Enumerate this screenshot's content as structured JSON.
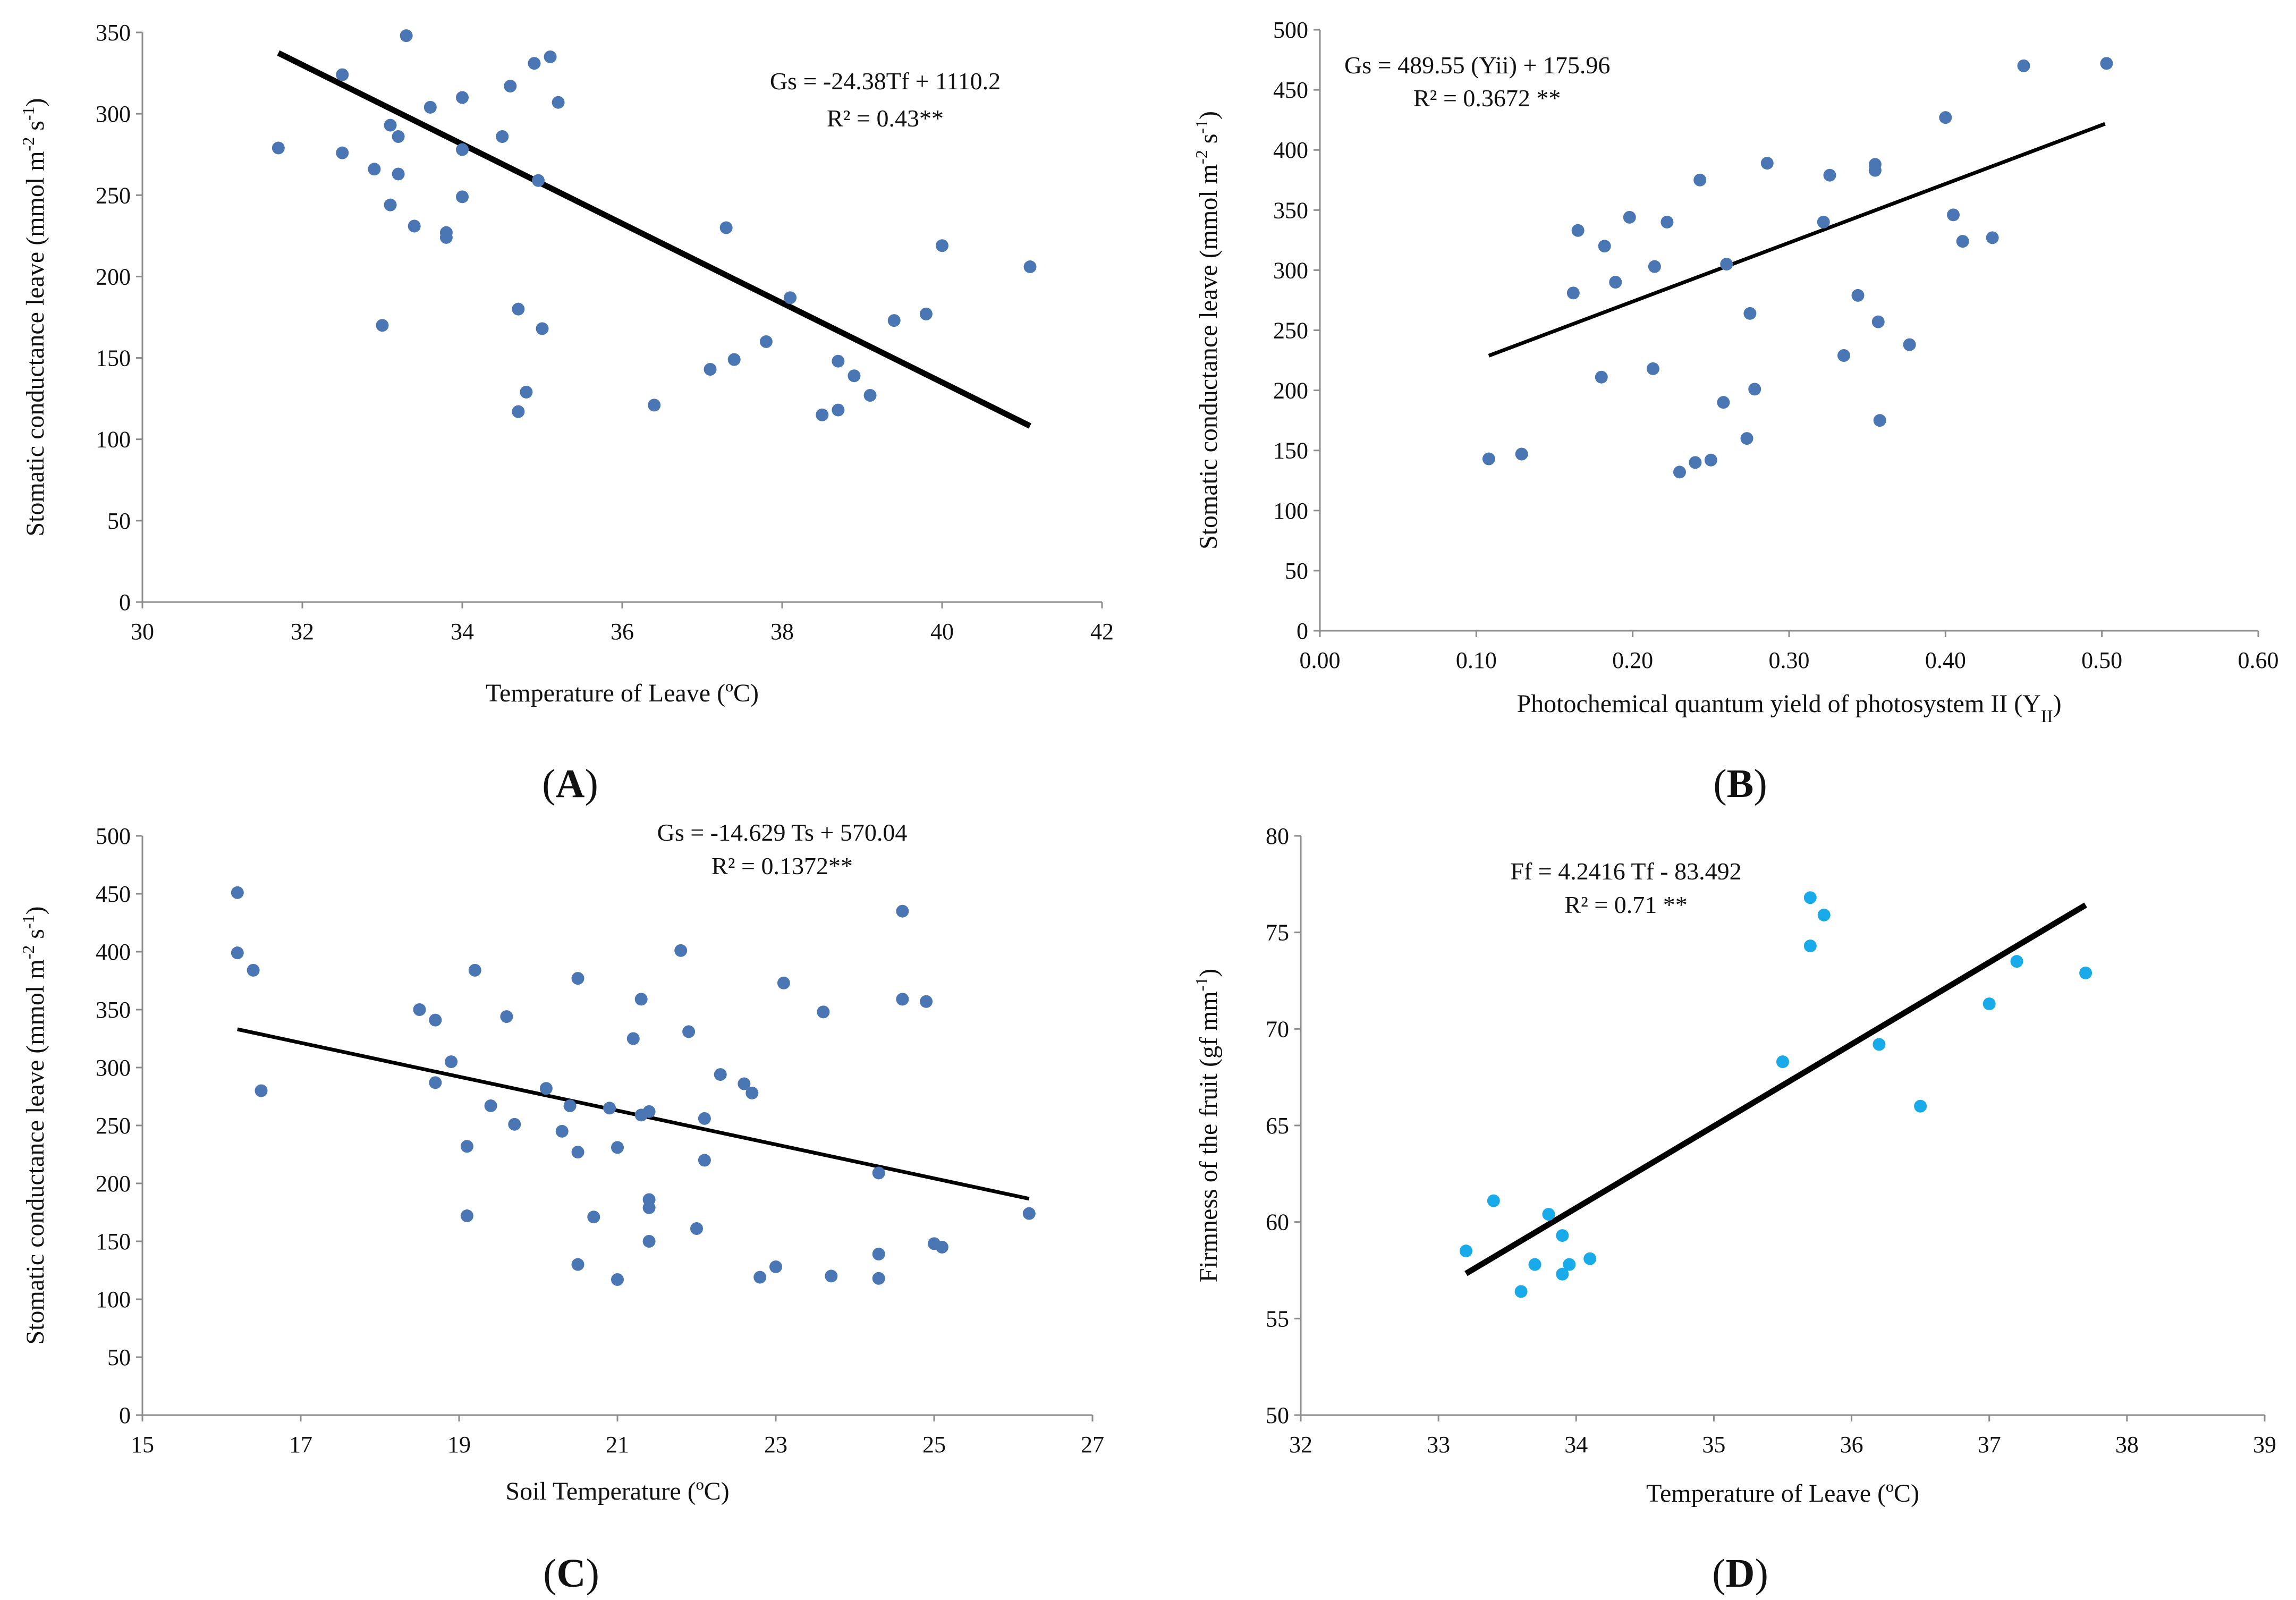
{
  "chart_data": [
    {
      "type": "scatter",
      "panel": "(A)",
      "panel_letter": "A",
      "xlabel": "Temperature of Leave (ºC)",
      "ylabel_parts": [
        "Stomatic conductance leave (mmol m",
        "-2",
        " s",
        "-1",
        ")"
      ],
      "xlim": [
        30,
        42
      ],
      "ylim": [
        0,
        350
      ],
      "xticks": [
        30,
        32,
        34,
        36,
        38,
        40,
        42
      ],
      "xtick_labels": [
        "30",
        "32",
        "34",
        "36",
        "38",
        "40",
        "42"
      ],
      "yticks": [
        0,
        50,
        100,
        150,
        200,
        250,
        300,
        350
      ],
      "ytick_labels": [
        "0",
        "50",
        "100",
        "150",
        "200",
        "250",
        "300",
        "350"
      ],
      "equation": [
        "Gs = -24.38Tf + 1110.2",
        "R² = 0.43**"
      ],
      "point_color": "#4a77b4",
      "trendline": {
        "slope": -24.38,
        "intercept": 1110.2,
        "x_range": [
          31.7,
          41.1
        ],
        "width": 11
      },
      "points": [
        [
          31.7,
          279
        ],
        [
          32.5,
          276
        ],
        [
          32.5,
          324
        ],
        [
          32.9,
          266
        ],
        [
          33.0,
          170
        ],
        [
          33.1,
          244
        ],
        [
          33.1,
          293
        ],
        [
          33.2,
          286
        ],
        [
          33.2,
          263
        ],
        [
          33.3,
          348
        ],
        [
          33.4,
          231
        ],
        [
          33.6,
          304
        ],
        [
          33.8,
          227
        ],
        [
          33.8,
          224
        ],
        [
          34.0,
          310
        ],
        [
          34.0,
          278
        ],
        [
          34.0,
          249
        ],
        [
          34.5,
          286
        ],
        [
          34.6,
          317
        ],
        [
          34.7,
          180
        ],
        [
          34.7,
          117
        ],
        [
          34.8,
          129
        ],
        [
          34.9,
          331
        ],
        [
          34.95,
          259
        ],
        [
          35.0,
          168
        ],
        [
          35.1,
          335
        ],
        [
          35.2,
          307
        ],
        [
          36.4,
          121
        ],
        [
          37.1,
          143
        ],
        [
          37.3,
          230
        ],
        [
          37.4,
          149
        ],
        [
          37.8,
          160
        ],
        [
          38.1,
          187
        ],
        [
          38.5,
          115
        ],
        [
          38.7,
          148
        ],
        [
          38.7,
          118
        ],
        [
          38.9,
          139
        ],
        [
          39.1,
          127
        ],
        [
          39.4,
          173
        ],
        [
          39.8,
          177
        ],
        [
          40.0,
          219
        ],
        [
          41.1,
          206
        ]
      ]
    },
    {
      "type": "scatter",
      "panel": "(B)",
      "panel_letter": "B",
      "xlabel_parts": [
        "Photochemical quantum yield of photosystem II (Y",
        "II",
        ")"
      ],
      "ylabel_parts": [
        "Stomatic conductance leave (mmol m",
        "-2",
        " s",
        "-1",
        ")"
      ],
      "xlim": [
        0,
        0.6
      ],
      "ylim": [
        0,
        500
      ],
      "xticks": [
        0,
        0.1,
        0.2,
        0.3,
        0.4,
        0.5,
        0.6
      ],
      "xtick_labels": [
        "0.00",
        "0.10",
        "0.20",
        "0.30",
        "0.40",
        "0.50",
        "0.60"
      ],
      "yticks": [
        0,
        50,
        100,
        150,
        200,
        250,
        300,
        350,
        400,
        450,
        500
      ],
      "ytick_labels": [
        "0",
        "50",
        "100",
        "150",
        "200",
        "250",
        "300",
        "350",
        "400",
        "450",
        "500"
      ],
      "equation": [
        "Gs = 489.55 (Yii) + 175.96",
        "R² = 0.3672 **"
      ],
      "point_color": "#4a77b4",
      "trendline": {
        "slope": 489.55,
        "intercept": 175.96,
        "x_range": [
          0.108,
          0.502
        ],
        "width": 7
      },
      "points": [
        [
          0.108,
          143
        ],
        [
          0.129,
          147
        ],
        [
          0.162,
          281
        ],
        [
          0.165,
          333
        ],
        [
          0.18,
          211
        ],
        [
          0.182,
          320
        ],
        [
          0.189,
          290
        ],
        [
          0.198,
          344
        ],
        [
          0.213,
          218
        ],
        [
          0.214,
          303
        ],
        [
          0.222,
          340
        ],
        [
          0.23,
          132
        ],
        [
          0.24,
          140
        ],
        [
          0.243,
          375
        ],
        [
          0.25,
          142
        ],
        [
          0.258,
          190
        ],
        [
          0.26,
          305
        ],
        [
          0.273,
          160
        ],
        [
          0.275,
          264
        ],
        [
          0.278,
          201
        ],
        [
          0.286,
          389
        ],
        [
          0.322,
          340
        ],
        [
          0.326,
          379
        ],
        [
          0.335,
          229
        ],
        [
          0.344,
          279
        ],
        [
          0.355,
          383
        ],
        [
          0.355,
          388
        ],
        [
          0.357,
          257
        ],
        [
          0.358,
          175
        ],
        [
          0.377,
          238
        ],
        [
          0.4,
          427
        ],
        [
          0.405,
          346
        ],
        [
          0.411,
          324
        ],
        [
          0.43,
          327
        ],
        [
          0.45,
          470
        ],
        [
          0.503,
          472
        ]
      ]
    },
    {
      "type": "scatter",
      "panel": "(C)",
      "panel_letter": "C",
      "xlabel": "Soil Temperature (ºC)",
      "ylabel_parts": [
        "Stomatic conductance leave (mmol m",
        "-2",
        " s",
        "-1",
        ")"
      ],
      "xlim": [
        15,
        27
      ],
      "ylim": [
        0,
        500
      ],
      "xticks": [
        15,
        17,
        19,
        21,
        23,
        25,
        27
      ],
      "xtick_labels": [
        "15",
        "17",
        "19",
        "21",
        "23",
        "25",
        "27"
      ],
      "yticks": [
        0,
        50,
        100,
        150,
        200,
        250,
        300,
        350,
        400,
        450,
        500
      ],
      "ytick_labels": [
        "0",
        "50",
        "100",
        "150",
        "200",
        "250",
        "300",
        "350",
        "400",
        "450",
        "500"
      ],
      "equation": [
        "Gs = -14.629 Ts + 570.04",
        "R² = 0.1372**"
      ],
      "point_color": "#4a77b4",
      "trendline": {
        "slope": -14.629,
        "intercept": 570.04,
        "x_range": [
          16.2,
          26.2
        ],
        "width": 7
      },
      "points": [
        [
          16.2,
          451
        ],
        [
          16.2,
          399
        ],
        [
          16.4,
          384
        ],
        [
          16.5,
          280
        ],
        [
          18.5,
          350
        ],
        [
          18.7,
          287
        ],
        [
          18.7,
          341
        ],
        [
          18.9,
          305
        ],
        [
          19.1,
          232
        ],
        [
          19.1,
          172
        ],
        [
          19.2,
          384
        ],
        [
          19.4,
          267
        ],
        [
          19.6,
          344
        ],
        [
          19.7,
          251
        ],
        [
          20.1,
          282
        ],
        [
          20.3,
          245
        ],
        [
          20.4,
          267
        ],
        [
          20.5,
          227
        ],
        [
          20.5,
          130
        ],
        [
          20.5,
          377
        ],
        [
          20.7,
          171
        ],
        [
          20.9,
          265
        ],
        [
          21.0,
          231
        ],
        [
          21.0,
          117
        ],
        [
          21.2,
          325
        ],
        [
          21.3,
          259
        ],
        [
          21.3,
          359
        ],
        [
          21.4,
          262
        ],
        [
          21.4,
          186
        ],
        [
          21.4,
          179
        ],
        [
          21.4,
          150
        ],
        [
          21.8,
          401
        ],
        [
          21.9,
          331
        ],
        [
          22.0,
          161
        ],
        [
          22.1,
          220
        ],
        [
          22.1,
          256
        ],
        [
          22.3,
          294
        ],
        [
          22.6,
          286
        ],
        [
          22.7,
          278
        ],
        [
          22.8,
          119
        ],
        [
          23.0,
          128
        ],
        [
          23.1,
          373
        ],
        [
          23.6,
          348
        ],
        [
          23.7,
          120
        ],
        [
          24.3,
          139
        ],
        [
          24.3,
          209
        ],
        [
          24.3,
          118
        ],
        [
          24.6,
          435
        ],
        [
          24.6,
          359
        ],
        [
          24.9,
          357
        ],
        [
          25.0,
          148
        ],
        [
          25.1,
          145
        ],
        [
          26.2,
          174
        ]
      ]
    },
    {
      "type": "scatter",
      "panel": "(D)",
      "panel_letter": "D",
      "xlabel": "Temperature of Leave (ºC)",
      "ylabel_parts": [
        "Firmness of the fruit (gf mm",
        "-1",
        ")"
      ],
      "xlim": [
        32,
        39
      ],
      "ylim": [
        50,
        80
      ],
      "xticks": [
        32,
        33,
        34,
        35,
        36,
        37,
        38,
        39
      ],
      "xtick_labels": [
        "32",
        "33",
        "34",
        "35",
        "36",
        "37",
        "38",
        "39"
      ],
      "yticks": [
        50,
        55,
        60,
        65,
        70,
        75,
        80
      ],
      "ytick_labels": [
        "50",
        "55",
        "60",
        "65",
        "70",
        "75",
        "80"
      ],
      "equation": [
        "Ff = 4.2416 Tf - 83.492",
        "R² = 0.71 **"
      ],
      "point_color": "#19aaea",
      "trendline": {
        "slope": 4.2416,
        "intercept": -83.492,
        "x_range": [
          33.2,
          37.7
        ],
        "width": 11
      },
      "points": [
        [
          33.2,
          58.5
        ],
        [
          33.4,
          61.1
        ],
        [
          33.6,
          56.4
        ],
        [
          33.7,
          57.8
        ],
        [
          33.8,
          60.4
        ],
        [
          33.9,
          59.3
        ],
        [
          33.9,
          57.3
        ],
        [
          33.95,
          57.8
        ],
        [
          34.1,
          58.1
        ],
        [
          35.5,
          68.3
        ],
        [
          35.7,
          76.8
        ],
        [
          35.7,
          74.3
        ],
        [
          35.8,
          75.9
        ],
        [
          36.2,
          69.2
        ],
        [
          36.5,
          66.0
        ],
        [
          37.0,
          71.3
        ],
        [
          37.2,
          73.5
        ],
        [
          37.7,
          72.9
        ]
      ]
    }
  ]
}
